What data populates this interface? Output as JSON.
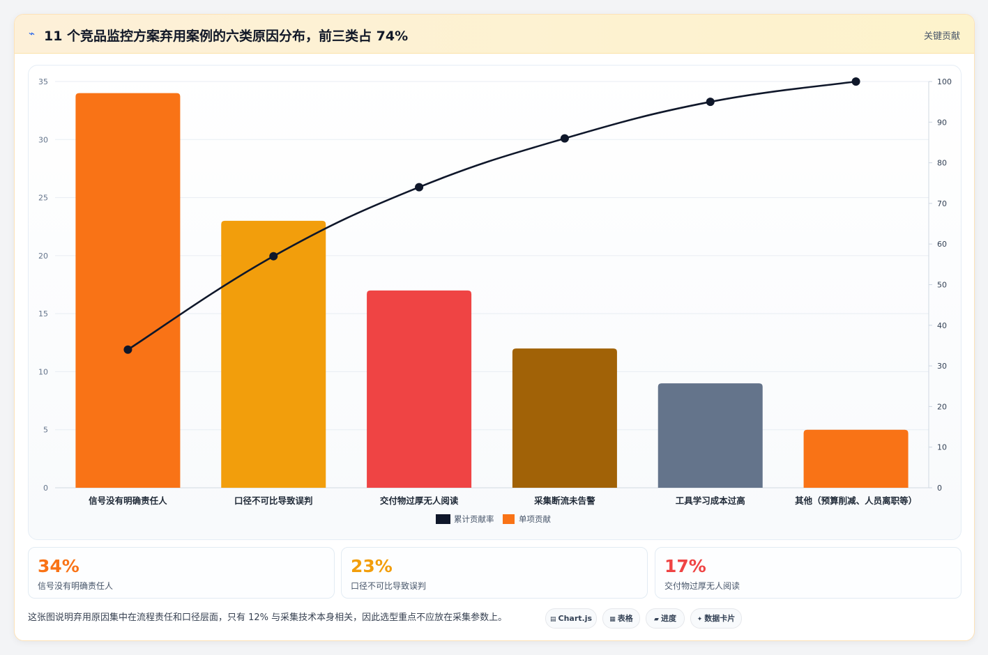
{
  "header": {
    "icon": "⌁",
    "title": "11 个竞品监控方案弃用案例的六类原因分布，前三类占 74%",
    "action_label": "关键贡献"
  },
  "chart_data": {
    "type": "bar",
    "categories": [
      "信号没有明确责任人",
      "口径不可比导致误判",
      "交付物过厚无人阅读",
      "采集断流未告警",
      "工具学习成本过高",
      "其他（预算削减、人员离职等）"
    ],
    "series": [
      {
        "name": "单项贡献",
        "type": "bar",
        "axis": "left",
        "values": [
          34,
          23,
          17,
          12,
          9,
          5
        ],
        "colors": [
          "#f97316",
          "#f29e0c",
          "#ef4444",
          "#a16207",
          "#64748b",
          "#f97316"
        ],
        "legend_color": "#f97316"
      },
      {
        "name": "累计贡献率",
        "type": "line",
        "axis": "right",
        "values": [
          34,
          57,
          74,
          86,
          95,
          100
        ],
        "color": "#0f172a"
      }
    ],
    "y_left": {
      "min": 0,
      "max": 35,
      "ticks": [
        0,
        5,
        10,
        15,
        20,
        25,
        30,
        35
      ]
    },
    "y_right": {
      "min": 0,
      "max": 100,
      "ticks": [
        0,
        10,
        20,
        30,
        40,
        50,
        60,
        70,
        80,
        90,
        100
      ]
    },
    "legend_position": "bottom",
    "grid": true
  },
  "stats": [
    {
      "value": "34%",
      "label": "信号没有明确责任人",
      "color": "#f97316"
    },
    {
      "value": "23%",
      "label": "口径不可比导致误判",
      "color": "#f29e0c"
    },
    {
      "value": "17%",
      "label": "交付物过厚无人阅读",
      "color": "#ef4444"
    }
  ],
  "summary": "这张图说明弃用原因集中在流程责任和口径层面，只有 12% 与采集技术本身相关，因此选型重点不应放在采集参数上。",
  "pills": [
    {
      "icon": "▤",
      "label": "Chart.js"
    },
    {
      "icon": "▦",
      "label": "表格"
    },
    {
      "icon": "▰",
      "label": "进度"
    },
    {
      "icon": "✦",
      "label": "数据卡片"
    }
  ]
}
